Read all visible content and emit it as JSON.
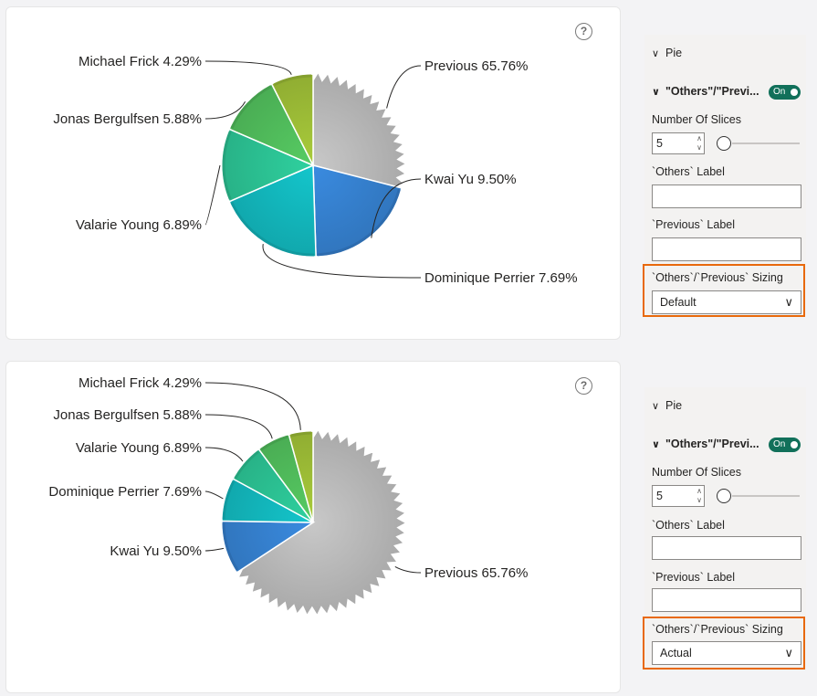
{
  "panels": [
    {
      "sizing_value": "Default",
      "slices": [
        {
          "name": "Previous",
          "label": "Previous 65.76%",
          "value": 65.76,
          "display_pct": 29.0,
          "color": "#c8c8c8"
        },
        {
          "name": "Kwai Yu",
          "label": "Kwai Yu 9.50%",
          "value": 9.5,
          "display_pct": 20.5,
          "color": "#3a8be0"
        },
        {
          "name": "Dominique Perrier",
          "label": "Dominique Perrier 7.69%",
          "value": 7.69,
          "display_pct": 19.0,
          "color": "#14c6cc"
        },
        {
          "name": "Valarie Young",
          "label": "Valarie Young 6.89%",
          "value": 6.89,
          "display_pct": 13.0,
          "color": "#2fd19f"
        },
        {
          "name": "Jonas Bergulfsen",
          "label": "Jonas Bergulfsen 5.88%",
          "value": 5.88,
          "display_pct": 11.0,
          "color": "#57cc63"
        },
        {
          "name": "Michael Frick",
          "label": "Michael Frick 4.29%",
          "value": 4.29,
          "display_pct": 7.5,
          "color": "#a9cc3b"
        }
      ]
    },
    {
      "sizing_value": "Actual",
      "slices": [
        {
          "name": "Previous",
          "label": "Previous 65.76%",
          "value": 65.76,
          "display_pct": 65.76,
          "color": "#c8c8c8"
        },
        {
          "name": "Kwai Yu",
          "label": "Kwai Yu 9.50%",
          "value": 9.5,
          "display_pct": 9.5,
          "color": "#3a8be0"
        },
        {
          "name": "Dominique Perrier",
          "label": "Dominique Perrier 7.69%",
          "value": 7.69,
          "display_pct": 7.69,
          "color": "#14c6cc"
        },
        {
          "name": "Valarie Young",
          "label": "Valarie Young 6.89%",
          "value": 6.89,
          "display_pct": 6.89,
          "color": "#2fd19f"
        },
        {
          "name": "Jonas Bergulfsen",
          "label": "Jonas Bergulfsen 5.88%",
          "value": 5.88,
          "display_pct": 5.88,
          "color": "#57cc63"
        },
        {
          "name": "Michael Frick",
          "label": "Michael Frick 4.29%",
          "value": 4.29,
          "display_pct": 4.29,
          "color": "#a9cc3b"
        }
      ]
    }
  ],
  "format_pane": {
    "section_title": "Pie",
    "subsection_title": "\"Others\"/\"Previ...",
    "toggle_label": "On",
    "slices_label": "Number Of Slices",
    "slices_value": "5",
    "others_label": "`Others` Label",
    "previous_label": "`Previous` Label",
    "sizing_label": "`Others`/`Previous` Sizing"
  },
  "icons": {
    "help": "question-circle-icon",
    "expand": "chevron-down-icon"
  },
  "colors": {
    "highlight": "#e8690c",
    "toggle": "#11705a"
  },
  "chart_data": [
    {
      "type": "pie",
      "labels": [
        "Previous",
        "Kwai Yu",
        "Dominique Perrier",
        "Valarie Young",
        "Jonas Bergulfsen",
        "Michael Frick"
      ],
      "values": [
        65.76,
        9.5,
        7.69,
        6.89,
        5.88,
        4.29
      ],
      "sizing": "Default"
    },
    {
      "type": "pie",
      "labels": [
        "Previous",
        "Kwai Yu",
        "Dominique Perrier",
        "Valarie Young",
        "Jonas Bergulfsen",
        "Michael Frick"
      ],
      "values": [
        65.76,
        9.5,
        7.69,
        6.89,
        5.88,
        4.29
      ],
      "sizing": "Actual"
    }
  ]
}
